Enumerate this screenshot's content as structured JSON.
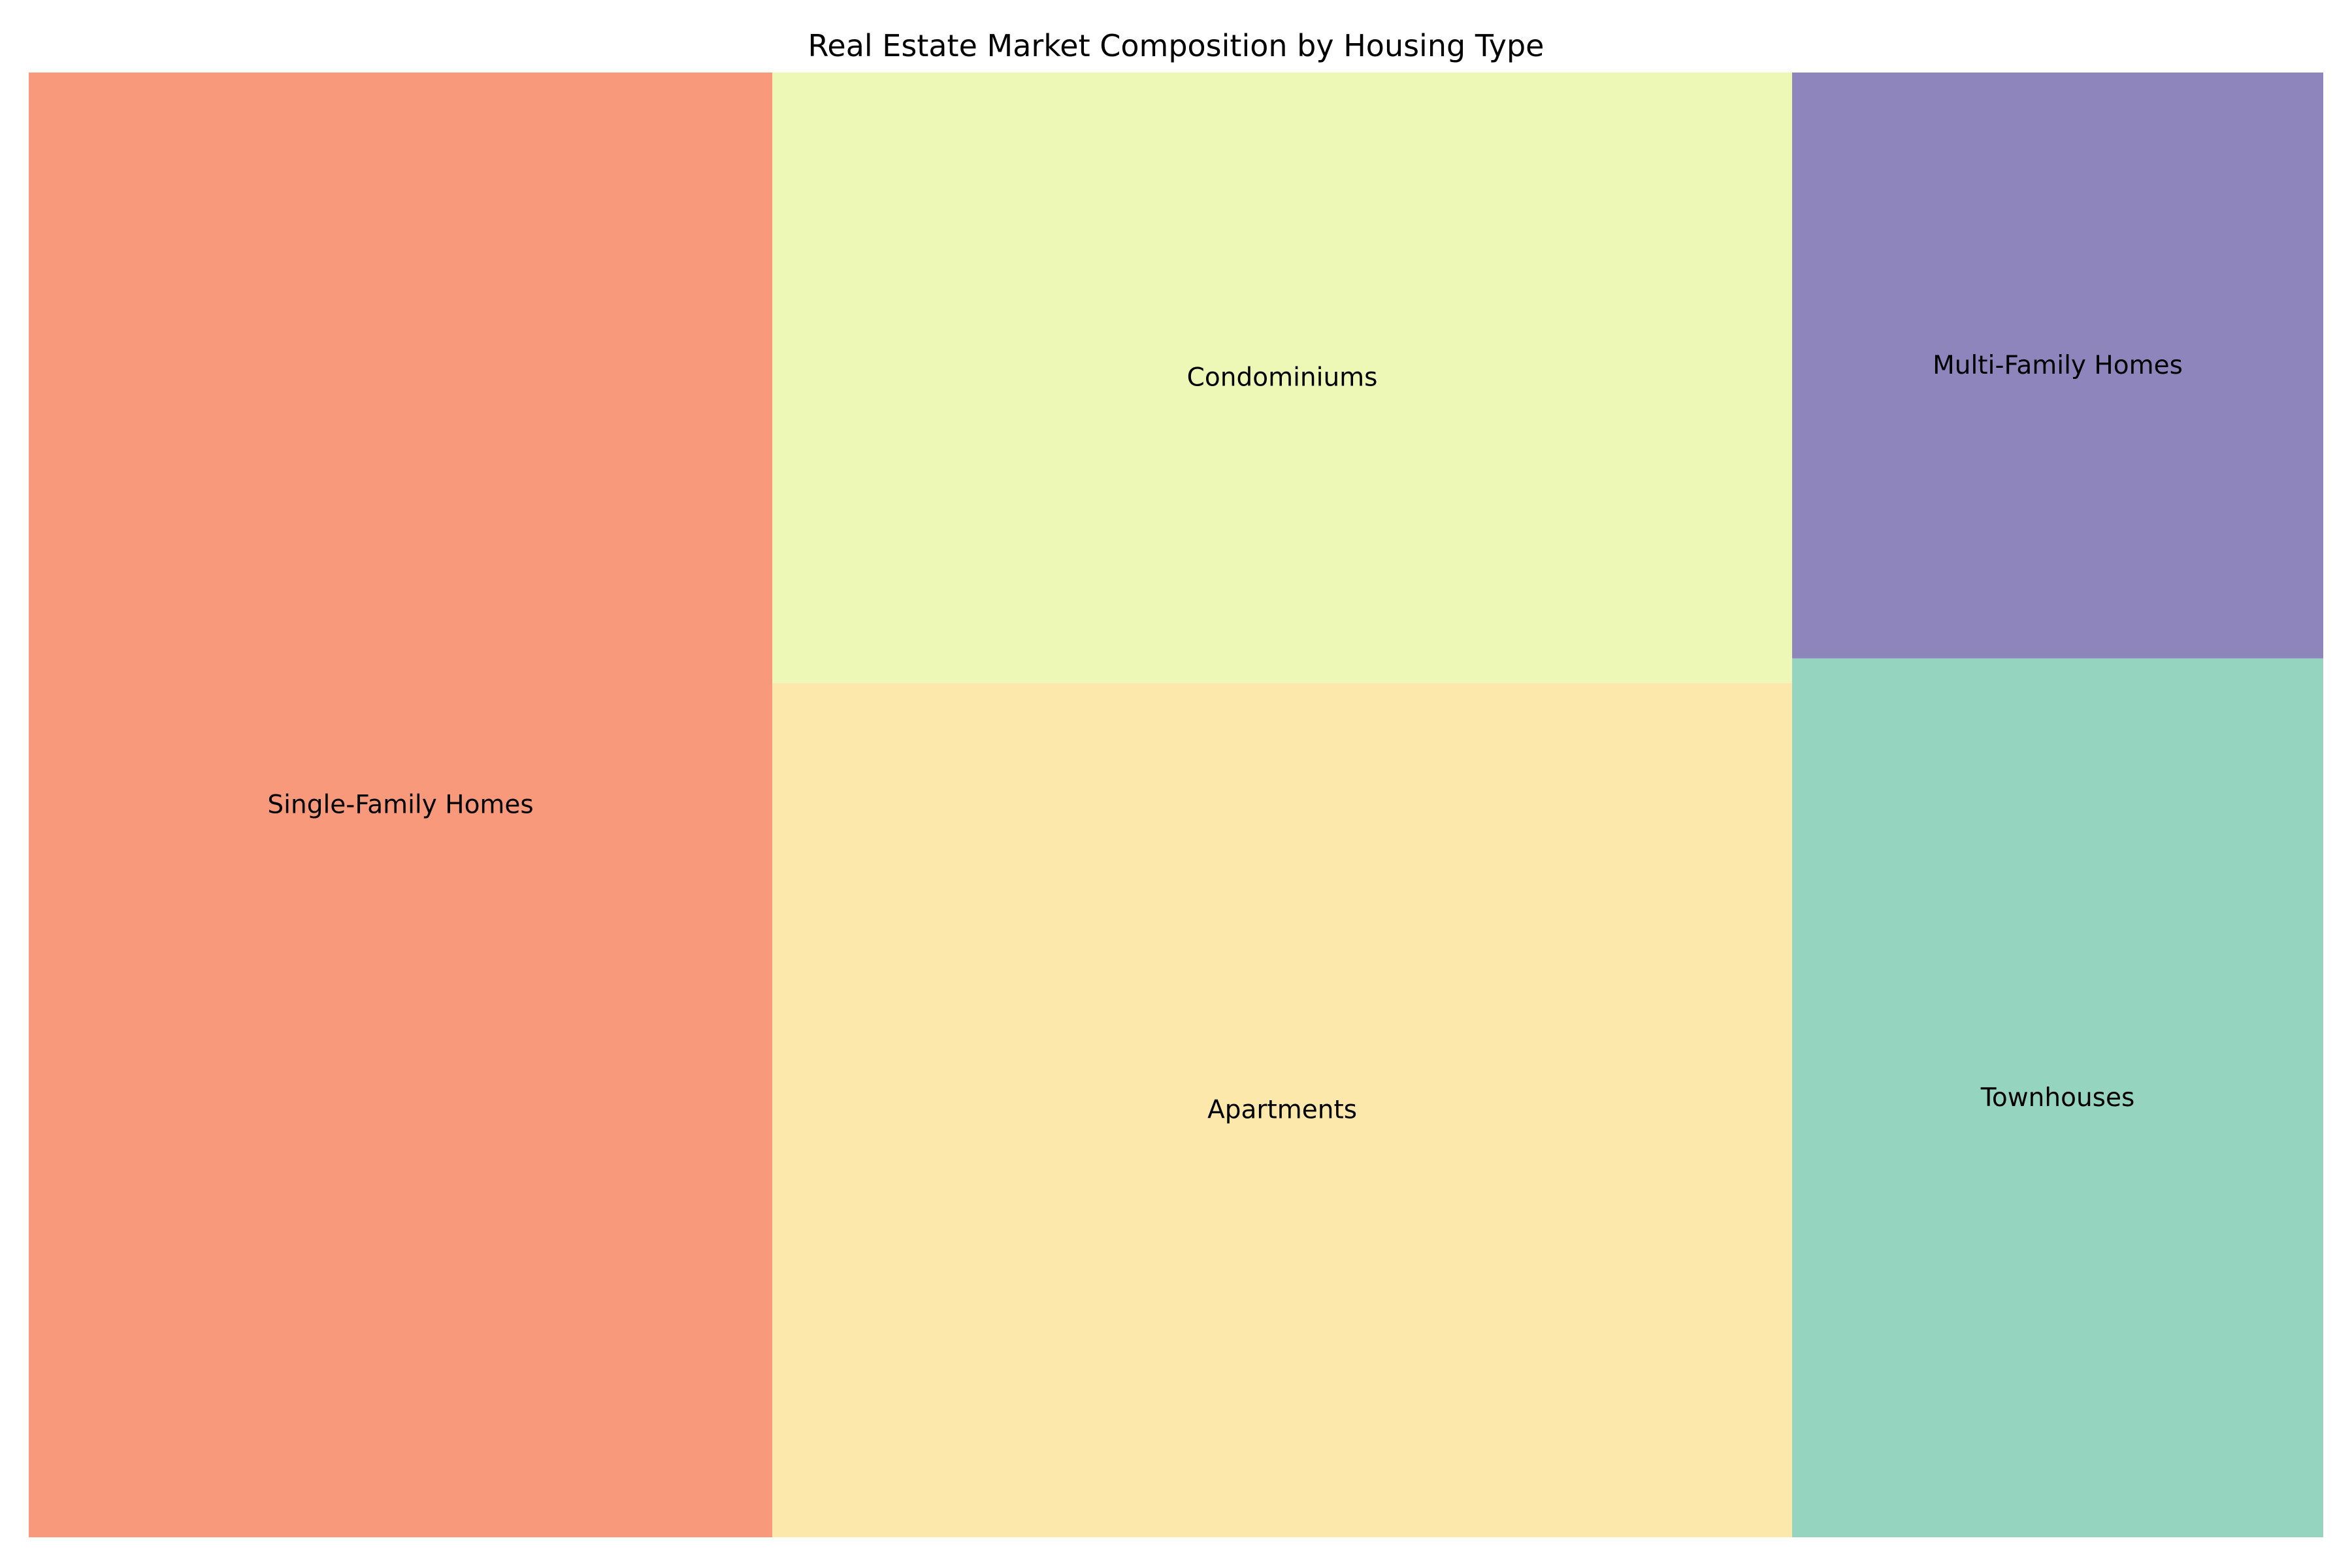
{
  "chart_data": {
    "type": "treemap",
    "title": "Real Estate Market Composition by Housing Type",
    "items": [
      {
        "label": "Single-Family Homes",
        "value": 35,
        "color": "#f7997a"
      },
      {
        "label": "Apartments",
        "value": 28,
        "color": "#fce8aa"
      },
      {
        "label": "Condominiums",
        "value": 20,
        "color": "#edf8b6"
      },
      {
        "label": "Townhouses",
        "value": 15,
        "color": "#95d5c0"
      },
      {
        "label": "Multi-Family Homes",
        "value": 10,
        "color": "#8e85bd"
      }
    ]
  }
}
